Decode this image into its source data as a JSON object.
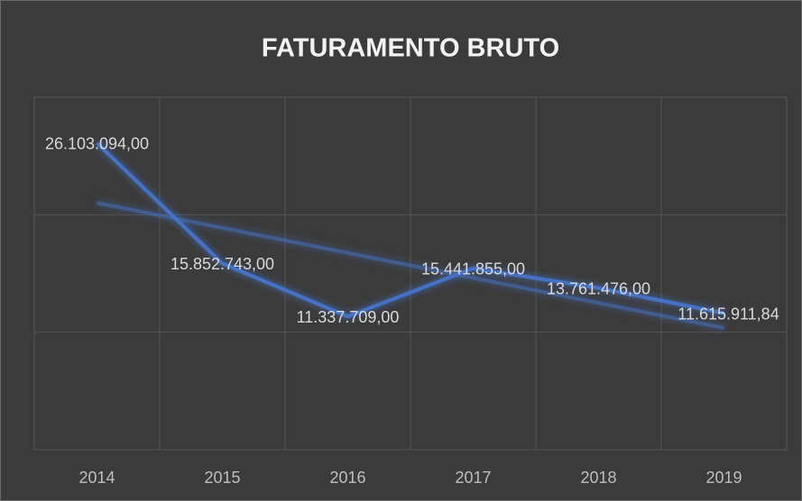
{
  "chart_data": {
    "type": "line",
    "title": "FATURAMENTO BRUTO",
    "categories": [
      "2014",
      "2015",
      "2016",
      "2017",
      "2018",
      "2019"
    ],
    "series": [
      {
        "color": "#4472c4",
        "values": [
          26103094,
          15852743,
          11337709,
          15441855,
          13761476,
          11615911.84
        ],
        "value_labels": [
          "26.103.094,00",
          "15.852.743,00",
          "11.337.709,00",
          "15.441.855,00",
          "13.761.476,00",
          "11.615.911,84"
        ]
      }
    ],
    "trendline": "linear",
    "ylim": [
      0,
      30000000
    ],
    "yticks": [
      0,
      10000000,
      20000000,
      30000000
    ],
    "grid": true
  }
}
